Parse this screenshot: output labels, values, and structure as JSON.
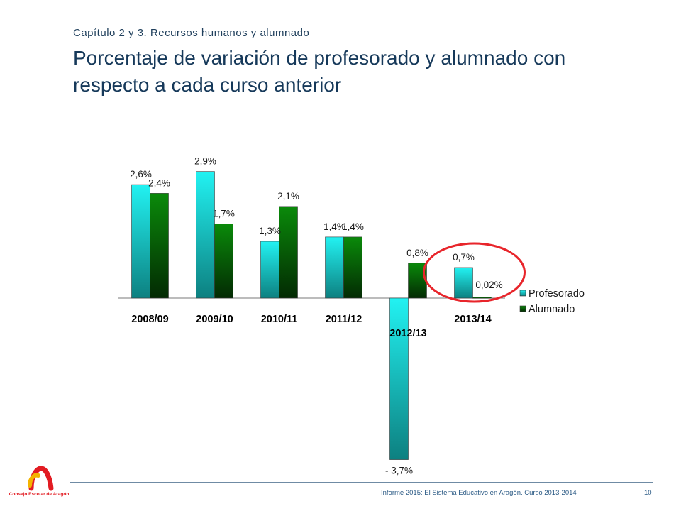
{
  "header": {
    "chapter": "Capítulo 2 y 3. Recursos humanos y alumnado",
    "title": "Porcentaje de variación de profesorado y alumnado con respecto a cada curso anterior"
  },
  "chart_data": {
    "type": "bar",
    "categories": [
      "2008/09",
      "2009/10",
      "2010/11",
      "2011/12",
      "2012/13",
      "2013/14"
    ],
    "series": [
      {
        "name": "Profesorado",
        "values": [
          2.6,
          2.9,
          1.3,
          1.4,
          -3.7,
          0.7
        ],
        "labels": [
          "2,6%",
          "2,9%",
          "1,3%",
          "1,4%",
          "- 3,7%",
          "0,7%"
        ],
        "color": "#1fd8d8"
      },
      {
        "name": "Alumnado",
        "values": [
          2.4,
          1.7,
          2.1,
          1.4,
          0.8,
          0.02
        ],
        "labels": [
          "2,4%",
          "1,7%",
          "2,1%",
          "1,4%",
          "0,8%",
          "0,02%"
        ],
        "color": "#0d7a0d"
      }
    ],
    "ylim": [
      -3.7,
      2.9
    ],
    "grid": false,
    "legend_position": "right",
    "highlight_category": "2013/14",
    "highlight_color": "#e8252b"
  },
  "footer": {
    "text": "Informe 2015: El Sistema Educativo en Aragón. Curso 2013-2014",
    "page": "10",
    "logo_text": "Consejo Escolar de Aragón"
  }
}
